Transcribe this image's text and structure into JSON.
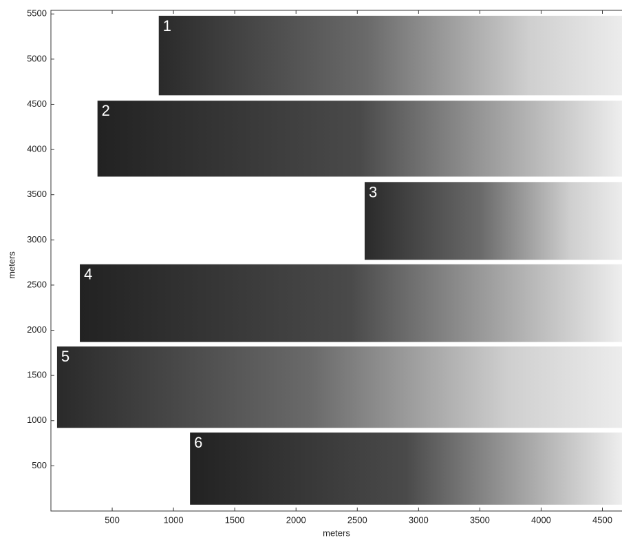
{
  "chart_data": {
    "type": "image-panels",
    "xlabel": "meters",
    "ylabel": "meters",
    "xlim": [
      0,
      4660
    ],
    "ylim": [
      0,
      5540
    ],
    "xticks": [
      500,
      1000,
      1500,
      2000,
      2500,
      3000,
      3500,
      4000,
      4500
    ],
    "yticks": [
      500,
      1000,
      1500,
      2000,
      2500,
      3000,
      3500,
      4000,
      4500,
      5000,
      5500
    ],
    "panels": [
      {
        "label": "1",
        "x": [
          880,
          4660
        ],
        "y": [
          4600,
          5480
        ]
      },
      {
        "label": "2",
        "x": [
          380,
          4660
        ],
        "y": [
          3700,
          4540
        ]
      },
      {
        "label": "3",
        "x": [
          2560,
          4660
        ],
        "y": [
          2780,
          3640
        ]
      },
      {
        "label": "4",
        "x": [
          236,
          4660
        ],
        "y": [
          1870,
          2730
        ]
      },
      {
        "label": "5",
        "x": [
          50,
          4660
        ],
        "y": [
          920,
          1820
        ]
      },
      {
        "label": "6",
        "x": [
          1135,
          4660
        ],
        "y": [
          70,
          868
        ]
      }
    ]
  }
}
